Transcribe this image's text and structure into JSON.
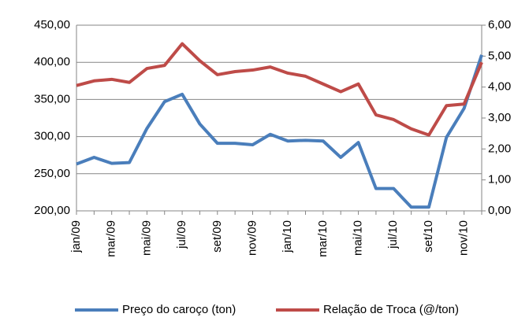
{
  "chart_data": {
    "type": "line",
    "categories": [
      "jan/09",
      null,
      "mar/09",
      null,
      "mai/09",
      null,
      "jul/09",
      null,
      "set/09",
      null,
      "nov/09",
      null,
      "jan/10",
      null,
      "mar/10",
      null,
      "mai/10",
      null,
      "jul/10",
      null,
      "set/10",
      null,
      "nov/10",
      null
    ],
    "series": [
      {
        "name": "Preço do caroço (ton)",
        "color": "#4a7ebb",
        "values": [
          263,
          272,
          264,
          265,
          311,
          347,
          357,
          317,
          291,
          291,
          289,
          303,
          294,
          295,
          294,
          272,
          292,
          230,
          230,
          205,
          205,
          299,
          338,
          410
        ]
      },
      {
        "name": "Relação de Troca (@/ton)",
        "color": "#be4b48",
        "axis": "y2",
        "values": [
          4.05,
          4.2,
          4.25,
          4.15,
          4.6,
          4.7,
          5.4,
          4.85,
          4.4,
          4.5,
          4.55,
          4.65,
          4.45,
          4.35,
          4.1,
          3.85,
          4.1,
          3.1,
          2.95,
          2.65,
          2.45,
          3.4,
          3.45,
          4.8
        ]
      }
    ],
    "ylim": [
      200,
      450
    ],
    "yticks": [
      {
        "value": 200,
        "label": "200,00"
      },
      {
        "value": 250,
        "label": "250,00"
      },
      {
        "value": 300,
        "label": "300,00"
      },
      {
        "value": 350,
        "label": "350,00"
      },
      {
        "value": 400,
        "label": "400,00"
      },
      {
        "value": 450,
        "label": "450,00"
      }
    ],
    "y2lim": [
      0,
      6
    ],
    "y2ticks": [
      {
        "value": 0,
        "label": "0,00"
      },
      {
        "value": 1,
        "label": "1,00"
      },
      {
        "value": 2,
        "label": "2,00"
      },
      {
        "value": 3,
        "label": "3,00"
      },
      {
        "value": 4,
        "label": "4,00"
      },
      {
        "value": 5,
        "label": "5,00"
      },
      {
        "value": 6,
        "label": "6,00"
      }
    ],
    "grid": true,
    "legend": "bottom"
  }
}
